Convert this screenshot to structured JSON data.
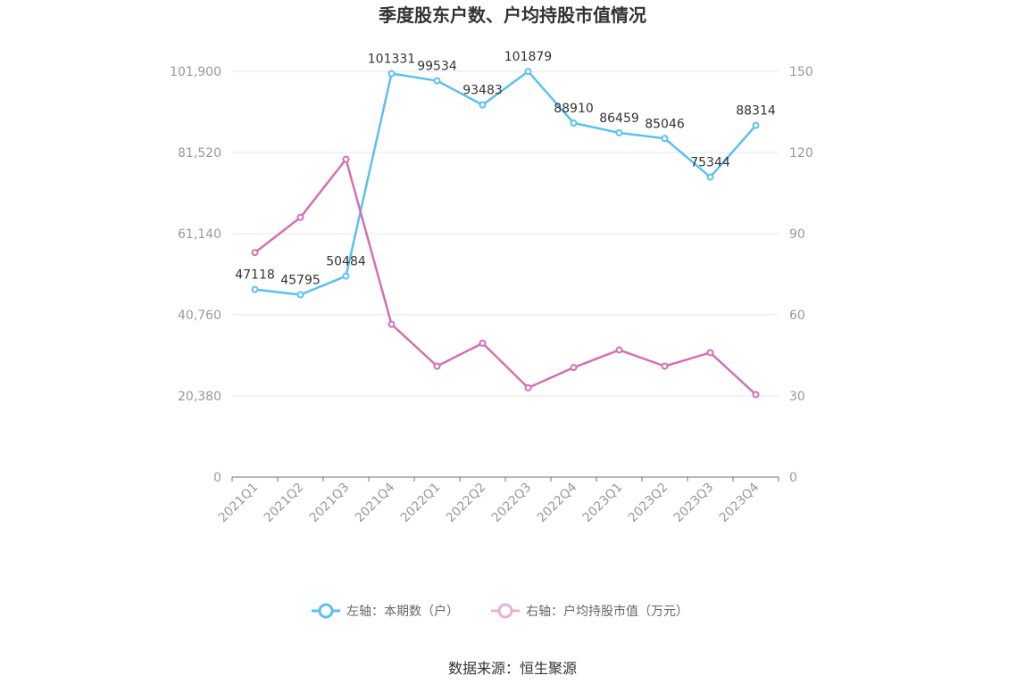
{
  "chart_data": {
    "type": "line",
    "title": "季度股东户数、户均持股市值情况",
    "categories": [
      "2021Q1",
      "2021Q2",
      "2021Q3",
      "2021Q4",
      "2022Q1",
      "2022Q2",
      "2022Q3",
      "2022Q4",
      "2023Q1",
      "2023Q2",
      "2023Q3",
      "2023Q4"
    ],
    "left_axis": {
      "min": 0,
      "max": 101900,
      "ticks": [
        0,
        20380,
        40760,
        61140,
        81520,
        101900
      ],
      "tick_labels": [
        "0",
        "20,380",
        "40,760",
        "61,140",
        "81,520",
        "101,900"
      ]
    },
    "right_axis": {
      "min": 0,
      "max": 150,
      "ticks": [
        0,
        30,
        60,
        90,
        120,
        150
      ],
      "tick_labels": [
        "0",
        "30",
        "60",
        "90",
        "120",
        "150"
      ]
    },
    "series": [
      {
        "name": "左轴：本期数（户）",
        "axis": "left",
        "color": "#5bc0f0",
        "values": [
          47118,
          45795,
          50484,
          101331,
          99534,
          93483,
          101879,
          88910,
          86459,
          85046,
          75344,
          88314
        ],
        "labels": [
          "47118",
          "45795",
          "50484",
          "101331",
          "99534",
          "93483",
          "101879",
          "88910",
          "86459",
          "85046",
          "75344",
          "88314"
        ]
      },
      {
        "name": "右轴：户均持股市值（万元）",
        "axis": "right",
        "color": "#d46fb4",
        "values": [
          83,
          96,
          117.5,
          56.5,
          41,
          49.5,
          33,
          40.5,
          47,
          41,
          46,
          30.5
        ]
      }
    ],
    "legend_position": "bottom-center",
    "grid": true
  },
  "source": "数据来源：恒生聚源"
}
